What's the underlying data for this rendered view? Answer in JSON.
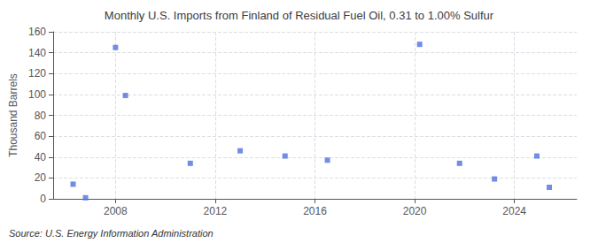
{
  "chart_data": {
    "type": "scatter",
    "title": "Monthly U.S. Imports from Finland of Residual Fuel Oil, 0.31 to 1.00% Sulfur",
    "ylabel": "Thousand Barrels",
    "annotation": "Source: U.S. Energy Information Administration",
    "x": [
      2006.3,
      2006.8,
      2008.0,
      2008.4,
      2011.0,
      2013.0,
      2014.8,
      2016.5,
      2020.2,
      2021.8,
      2023.2,
      2024.9,
      2025.4
    ],
    "values": [
      14,
      1,
      145,
      99,
      34,
      46,
      41,
      37,
      148,
      34,
      19,
      41,
      11
    ],
    "xlim": [
      2005.5,
      2026.5
    ],
    "xticks": [
      2008,
      2012,
      2016,
      2020,
      2024
    ],
    "ylim": [
      0,
      160
    ],
    "yticks": [
      0,
      20,
      40,
      60,
      80,
      100,
      120,
      140,
      160
    ],
    "grid": true,
    "marker": "square"
  }
}
